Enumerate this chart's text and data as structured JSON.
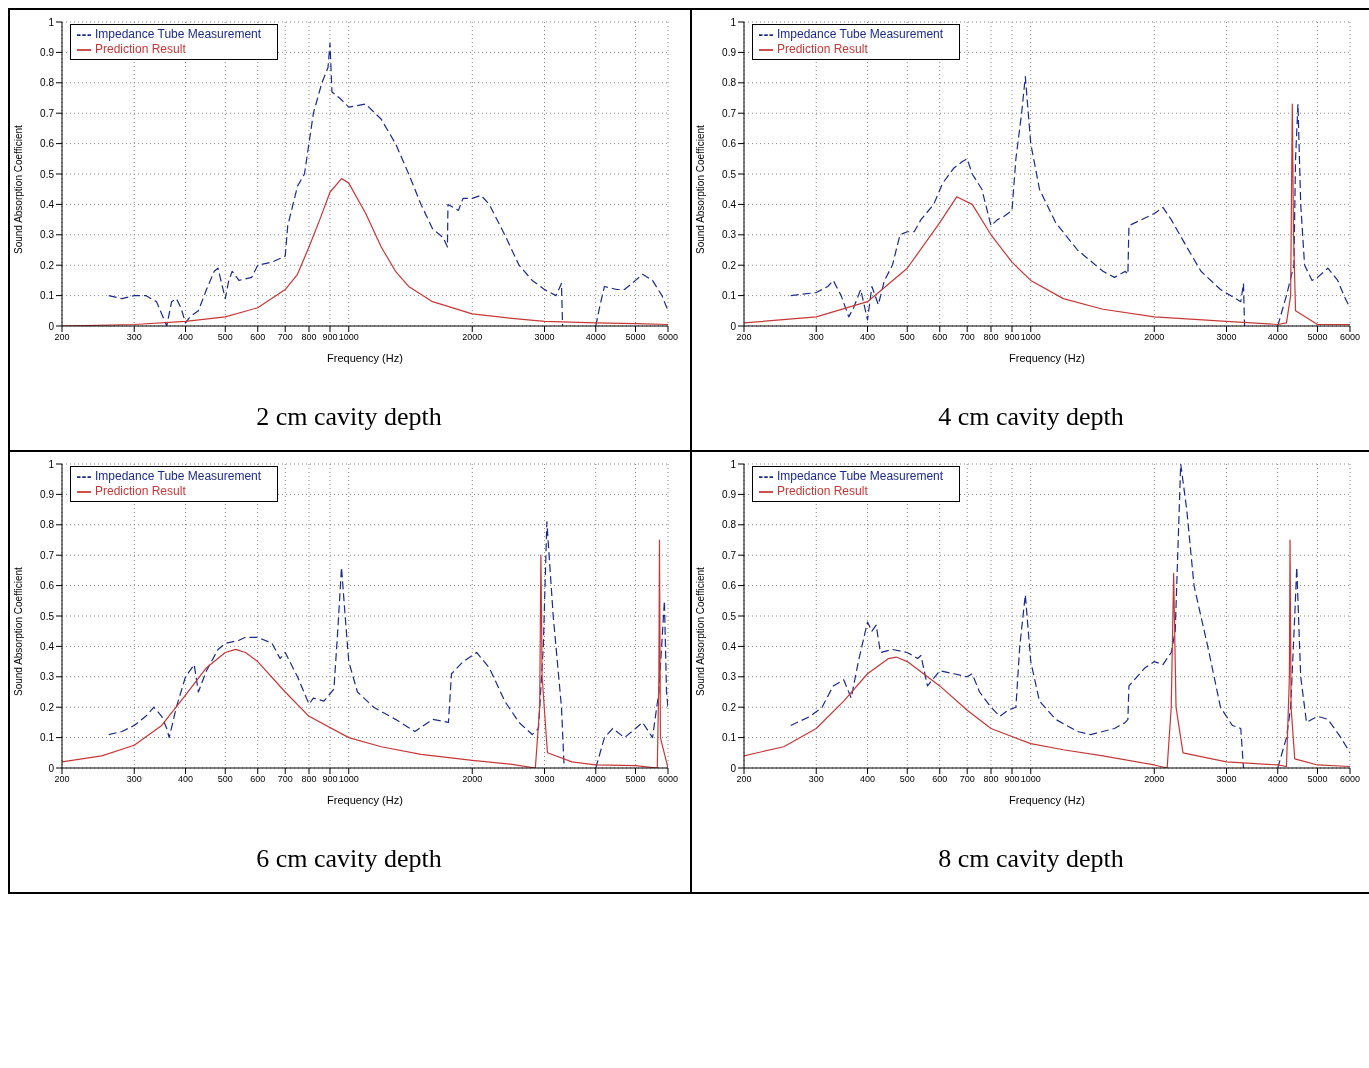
{
  "chart_data": [
    {
      "type": "line",
      "title": "2 cm cavity depth",
      "xlabel": "Frequency (Hz)",
      "ylabel": "Sound Absorption Coefficient",
      "log": "x",
      "grid": true,
      "legend": "top left",
      "xlim": [
        200,
        6000
      ],
      "ylim": [
        0,
        1
      ],
      "xticks": [
        200,
        300,
        400,
        500,
        600,
        700,
        800,
        900,
        1000,
        2000,
        3000,
        4000,
        5000,
        6000
      ],
      "yticks": [
        0,
        0.1,
        0.2,
        0.3,
        0.4,
        0.5,
        0.6,
        0.7,
        0.8,
        0.9,
        1
      ],
      "series": [
        {
          "name": "Impedance Tube Measurement",
          "color": "#1c2a8c",
          "line_style": "dashed",
          "x": [
            260,
            280,
            300,
            320,
            340,
            355,
            360,
            370,
            380,
            390,
            400,
            410,
            430,
            450,
            470,
            480,
            500,
            510,
            520,
            540,
            580,
            600,
            650,
            700,
            710,
            750,
            780,
            820,
            860,
            890,
            900,
            910,
            950,
            1000,
            1100,
            1200,
            1300,
            1400,
            1500,
            1600,
            1700,
            1740,
            1745,
            1850,
            1900,
            2000,
            2100,
            2200,
            2400,
            2600,
            2800,
            3000,
            3200,
            3300,
            3320,
            3600,
            4000,
            4100,
            4200,
            4500,
            4700,
            5000,
            5200,
            5500,
            5800,
            6000
          ],
          "values": [
            0.1,
            0.09,
            0.1,
            0.1,
            0.08,
            0.02,
            0,
            0.08,
            0.09,
            0.06,
            0.01,
            0.03,
            0.05,
            0.12,
            0.18,
            0.19,
            0.09,
            0.15,
            0.18,
            0.15,
            0.16,
            0.2,
            0.21,
            0.23,
            0.33,
            0.46,
            0.5,
            0.7,
            0.8,
            0.85,
            0.93,
            0.77,
            0.75,
            0.72,
            0.73,
            0.68,
            0.6,
            0.5,
            0.4,
            0.32,
            0.29,
            0.26,
            0.4,
            0.38,
            0.42,
            0.42,
            0.43,
            0.4,
            0.3,
            0.2,
            0.15,
            0.12,
            0.1,
            0.14,
            0,
            null,
            0,
            0.07,
            0.13,
            0.12,
            0.12,
            0.15,
            0.17,
            0.15,
            0.1,
            0.05
          ]
        },
        {
          "name": "Prediction Result",
          "color": "#c83737",
          "line_style": "solid",
          "x": [
            200,
            300,
            400,
            500,
            600,
            700,
            750,
            800,
            850,
            900,
            960,
            1000,
            1100,
            1200,
            1300,
            1400,
            1600,
            2000,
            2500,
            3000,
            4000,
            5000,
            6000
          ],
          "values": [
            0,
            0.005,
            0.015,
            0.03,
            0.06,
            0.12,
            0.17,
            0.26,
            0.35,
            0.44,
            0.485,
            0.47,
            0.37,
            0.26,
            0.18,
            0.13,
            0.08,
            0.04,
            0.025,
            0.015,
            0.01,
            0.008,
            0.005
          ]
        }
      ]
    },
    {
      "type": "line",
      "title": "4 cm cavity depth",
      "xlabel": "Frequency (Hz)",
      "ylabel": "Sound Absorption Coefficient",
      "log": "x",
      "grid": true,
      "legend": "top left",
      "xlim": [
        200,
        6000
      ],
      "ylim": [
        0,
        1
      ],
      "xticks": [
        200,
        300,
        400,
        500,
        600,
        700,
        800,
        900,
        1000,
        2000,
        3000,
        4000,
        5000,
        6000
      ],
      "yticks": [
        0,
        0.1,
        0.2,
        0.3,
        0.4,
        0.5,
        0.6,
        0.7,
        0.8,
        0.9,
        1
      ],
      "series": [
        {
          "name": "Impedance Tube Measurement",
          "color": "#1c2a8c",
          "line_style": "dashed",
          "x": [
            260,
            300,
            320,
            330,
            345,
            360,
            370,
            385,
            400,
            410,
            425,
            440,
            460,
            480,
            500,
            520,
            540,
            580,
            610,
            650,
            680,
            700,
            720,
            760,
            800,
            830,
            860,
            900,
            920,
            950,
            970,
            1000,
            1050,
            1150,
            1300,
            1500,
            1600,
            1700,
            1725,
            1735,
            2000,
            2100,
            2200,
            2400,
            2600,
            2900,
            3250,
            3300,
            3320,
            3600,
            4000,
            4200,
            4380,
            4420,
            4480,
            4550,
            4650,
            4850,
            5000,
            5300,
            5600,
            5800,
            6000
          ],
          "values": [
            0.1,
            0.11,
            0.13,
            0.15,
            0.1,
            0.03,
            0.06,
            0.12,
            0.02,
            0.13,
            0.07,
            0.15,
            0.2,
            0.3,
            0.31,
            0.31,
            0.35,
            0.4,
            0.47,
            0.52,
            0.54,
            0.55,
            0.5,
            0.45,
            0.33,
            0.35,
            0.36,
            0.38,
            0.55,
            0.7,
            0.82,
            0.6,
            0.45,
            0.34,
            0.25,
            0.18,
            0.16,
            0.18,
            0.17,
            0.33,
            0.37,
            0.39,
            0.35,
            0.26,
            0.18,
            0.12,
            0.08,
            0.14,
            0,
            null,
            0,
            0.1,
            0.2,
            0.55,
            0.73,
            0.4,
            0.2,
            0.15,
            0.16,
            0.19,
            0.15,
            0.1,
            0.06
          ]
        },
        {
          "name": "Prediction Result",
          "color": "#c83737",
          "line_style": "solid",
          "x": [
            200,
            300,
            400,
            500,
            600,
            660,
            720,
            800,
            900,
            1000,
            1200,
            1500,
            2000,
            3000,
            4000,
            4200,
            4300,
            4340,
            4370,
            4420,
            5000,
            6000
          ],
          "values": [
            0.01,
            0.03,
            0.08,
            0.19,
            0.34,
            0.425,
            0.4,
            0.3,
            0.21,
            0.15,
            0.09,
            0.055,
            0.03,
            0.015,
            0.005,
            0.01,
            0.1,
            0.73,
            0.3,
            0.05,
            0.005,
            0.005
          ]
        }
      ]
    },
    {
      "type": "line",
      "title": "6 cm cavity depth",
      "xlabel": "Frequency (Hz)",
      "ylabel": "Sound Absorption Coefficient",
      "log": "x",
      "grid": true,
      "legend": "top left",
      "xlim": [
        200,
        6000
      ],
      "ylim": [
        0,
        1
      ],
      "xticks": [
        200,
        300,
        400,
        500,
        600,
        700,
        800,
        900,
        1000,
        2000,
        3000,
        4000,
        5000,
        6000
      ],
      "yticks": [
        0,
        0.1,
        0.2,
        0.3,
        0.4,
        0.5,
        0.6,
        0.7,
        0.8,
        0.9,
        1
      ],
      "series": [
        {
          "name": "Impedance Tube Measurement",
          "color": "#1c2a8c",
          "line_style": "dashed",
          "x": [
            260,
            280,
            300,
            320,
            335,
            350,
            360,
            365,
            380,
            400,
            420,
            430,
            450,
            480,
            500,
            540,
            560,
            600,
            650,
            680,
            700,
            750,
            800,
            820,
            870,
            920,
            940,
            960,
            980,
            1000,
            1050,
            1150,
            1300,
            1450,
            1600,
            1750,
            1780,
            1900,
            2050,
            2200,
            2400,
            2600,
            2800,
            2900,
            2980,
            3040,
            3150,
            3300,
            3350,
            3600,
            4000,
            4200,
            4400,
            4700,
            5000,
            5200,
            5500,
            5700,
            5880,
            5950,
            6000
          ],
          "values": [
            0.11,
            0.12,
            0.14,
            0.17,
            0.2,
            0.17,
            0.13,
            0.1,
            0.2,
            0.3,
            0.34,
            0.25,
            0.32,
            0.39,
            0.41,
            0.42,
            0.43,
            0.43,
            0.41,
            0.36,
            0.38,
            0.3,
            0.21,
            0.23,
            0.22,
            0.26,
            0.45,
            0.66,
            0.5,
            0.35,
            0.25,
            0.2,
            0.16,
            0.12,
            0.16,
            0.15,
            0.31,
            0.35,
            0.38,
            0.33,
            0.22,
            0.15,
            0.11,
            0.13,
            0.4,
            0.81,
            0.5,
            0.2,
            0,
            null,
            0,
            0.1,
            0.13,
            0.1,
            0.13,
            0.15,
            0.1,
            0.25,
            0.55,
            0.25,
            0.2
          ]
        },
        {
          "name": "Prediction Result",
          "color": "#c83737",
          "line_style": "solid",
          "x": [
            200,
            250,
            300,
            350,
            400,
            450,
            500,
            530,
            560,
            600,
            700,
            800,
            1000,
            1200,
            1500,
            2000,
            2500,
            2850,
            2920,
            2940,
            2960,
            3050,
            3500,
            4000,
            5000,
            5650,
            5700,
            5720,
            5750,
            6000
          ],
          "values": [
            0.02,
            0.04,
            0.075,
            0.14,
            0.24,
            0.33,
            0.38,
            0.39,
            0.38,
            0.35,
            0.25,
            0.17,
            0.1,
            0.07,
            0.045,
            0.025,
            0.012,
            0,
            0.2,
            0.7,
            0.3,
            0.05,
            0.02,
            0.01,
            0.008,
            0,
            0.3,
            0.75,
            0.1,
            0
          ]
        }
      ]
    },
    {
      "type": "line",
      "title": "8 cm cavity depth",
      "xlabel": "Frequency (Hz)",
      "ylabel": "Sound Absorption Coefficient",
      "log": "x",
      "grid": true,
      "legend": "top left",
      "xlim": [
        200,
        6000
      ],
      "ylim": [
        0,
        1
      ],
      "xticks": [
        200,
        300,
        400,
        500,
        600,
        700,
        800,
        900,
        1000,
        2000,
        3000,
        4000,
        5000,
        6000
      ],
      "yticks": [
        0,
        0.1,
        0.2,
        0.3,
        0.4,
        0.5,
        0.6,
        0.7,
        0.8,
        0.9,
        1
      ],
      "series": [
        {
          "name": "Impedance Tube Measurement",
          "color": "#1c2a8c",
          "line_style": "dashed",
          "x": [
            260,
            290,
            310,
            330,
            350,
            365,
            380,
            400,
            410,
            420,
            430,
            460,
            500,
            530,
            540,
            560,
            600,
            650,
            700,
            720,
            750,
            800,
            840,
            880,
            920,
            940,
            970,
            1000,
            1050,
            1150,
            1300,
            1400,
            1600,
            1700,
            1725,
            1735,
            1900,
            2000,
            2100,
            2200,
            2250,
            2320,
            2400,
            2500,
            2700,
            2900,
            3100,
            3250,
            3300,
            3600,
            4000,
            4200,
            4300,
            4400,
            4450,
            4550,
            4700,
            5000,
            5300,
            5700,
            6000
          ],
          "values": [
            0.14,
            0.17,
            0.2,
            0.27,
            0.29,
            0.23,
            0.35,
            0.48,
            0.45,
            0.47,
            0.38,
            0.39,
            0.38,
            0.36,
            0.37,
            0.27,
            0.32,
            0.31,
            0.3,
            0.31,
            0.25,
            0.2,
            0.17,
            0.19,
            0.2,
            0.4,
            0.57,
            0.35,
            0.22,
            0.16,
            0.12,
            0.11,
            0.13,
            0.15,
            0.16,
            0.27,
            0.33,
            0.35,
            0.34,
            0.38,
            0.45,
            1,
            0.85,
            0.6,
            0.4,
            0.2,
            0.14,
            0.13,
            0,
            null,
            0,
            0.1,
            0.2,
            0.5,
            0.66,
            0.3,
            0.15,
            0.17,
            0.16,
            0.1,
            0.05
          ]
        },
        {
          "name": "Prediction Result",
          "color": "#c83737",
          "line_style": "solid",
          "x": [
            200,
            250,
            300,
            350,
            400,
            450,
            470,
            500,
            600,
            700,
            800,
            1000,
            1200,
            1500,
            2000,
            2150,
            2200,
            2230,
            2260,
            2350,
            3000,
            4000,
            4200,
            4270,
            4285,
            4310,
            4400,
            5000,
            6000
          ],
          "values": [
            0.04,
            0.07,
            0.13,
            0.22,
            0.31,
            0.36,
            0.365,
            0.35,
            0.27,
            0.19,
            0.13,
            0.08,
            0.06,
            0.04,
            0.01,
            0,
            0.2,
            0.64,
            0.2,
            0.05,
            0.02,
            0.01,
            0.005,
            0.3,
            0.75,
            0.2,
            0.03,
            0.01,
            0.005
          ]
        }
      ]
    }
  ]
}
